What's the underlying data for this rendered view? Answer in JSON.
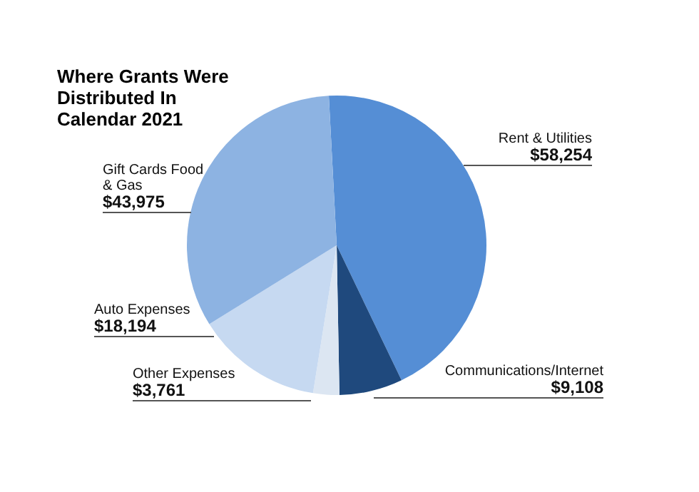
{
  "chart_data": {
    "type": "pie",
    "title": "Where Grants Were Distributed In Calendar 2021",
    "categories": [
      "Rent & Utilities",
      "Communications/Internet",
      "Other Expenses",
      "Auto Expenses",
      "Gift Cards Food & Gas"
    ],
    "values": [
      58254,
      9108,
      3761,
      18194,
      43975
    ],
    "value_labels": [
      "$58,254",
      "$9,108",
      "$3,761",
      "$18,194",
      "$43,975"
    ],
    "colors": [
      "#558ed5",
      "#1f497d",
      "#dce6f2",
      "#c6d9f1",
      "#8db3e2"
    ],
    "legend": false
  }
}
